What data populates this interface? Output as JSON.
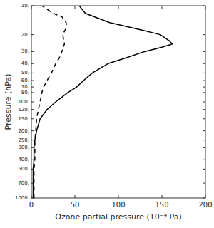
{
  "chart_data": {
    "type": "line",
    "xlabel": "Ozone partial pressure (10⁻⁴ Pa)",
    "ylabel": "Pressure (hPa)",
    "log": "y",
    "xlim": [
      0,
      200
    ],
    "xticks": [
      0,
      50,
      100,
      150,
      200
    ],
    "ylim": [
      1000,
      10
    ],
    "yticks": [
      {
        "value": 10,
        "label": "10."
      },
      {
        "value": 20,
        "label": "20."
      },
      {
        "value": 30,
        "label": "30."
      },
      {
        "value": 40,
        "label": "40."
      },
      {
        "value": 50,
        "label": "50."
      },
      {
        "value": 60,
        "label": "60."
      },
      {
        "value": 70,
        "label": "70."
      },
      {
        "value": 80,
        "label": "80."
      },
      {
        "value": 100,
        "label": "100."
      },
      {
        "value": 120,
        "label": "120."
      },
      {
        "value": 150,
        "label": "150."
      },
      {
        "value": 200,
        "label": "200."
      },
      {
        "value": 250,
        "label": "250."
      },
      {
        "value": 300,
        "label": "300."
      },
      {
        "value": 400,
        "label": "400."
      },
      {
        "value": 500,
        "label": "500."
      },
      {
        "value": 700,
        "label": "700."
      },
      {
        "value": 1000,
        "label": "1000."
      }
    ],
    "series": [
      {
        "color": "#000000",
        "line_style": "solid",
        "x": [
          2,
          2,
          2,
          3,
          3,
          4,
          6,
          10,
          18,
          28,
          42,
          52,
          60,
          70,
          88,
          108,
          130,
          150,
          162,
          158,
          148,
          128,
          90,
          62,
          55
        ],
        "values": [
          1000,
          700,
          500,
          400,
          300,
          250,
          200,
          150,
          120,
          100,
          80,
          70,
          60,
          50,
          40,
          35,
          30,
          27,
          25,
          23,
          20,
          18,
          15,
          12,
          10
        ]
      },
      {
        "color": "#000000",
        "line_style": "dashed",
        "x": [
          3,
          3,
          3,
          4,
          4,
          4,
          5,
          6,
          8,
          10,
          11,
          12,
          14,
          18,
          23,
          28,
          32,
          35,
          38,
          36,
          40,
          40,
          35,
          25,
          12
        ],
        "values": [
          1000,
          700,
          500,
          400,
          300,
          250,
          200,
          150,
          120,
          100,
          90,
          80,
          70,
          60,
          50,
          40,
          35,
          30,
          25,
          20,
          17,
          15,
          13,
          12,
          10
        ]
      }
    ]
  }
}
